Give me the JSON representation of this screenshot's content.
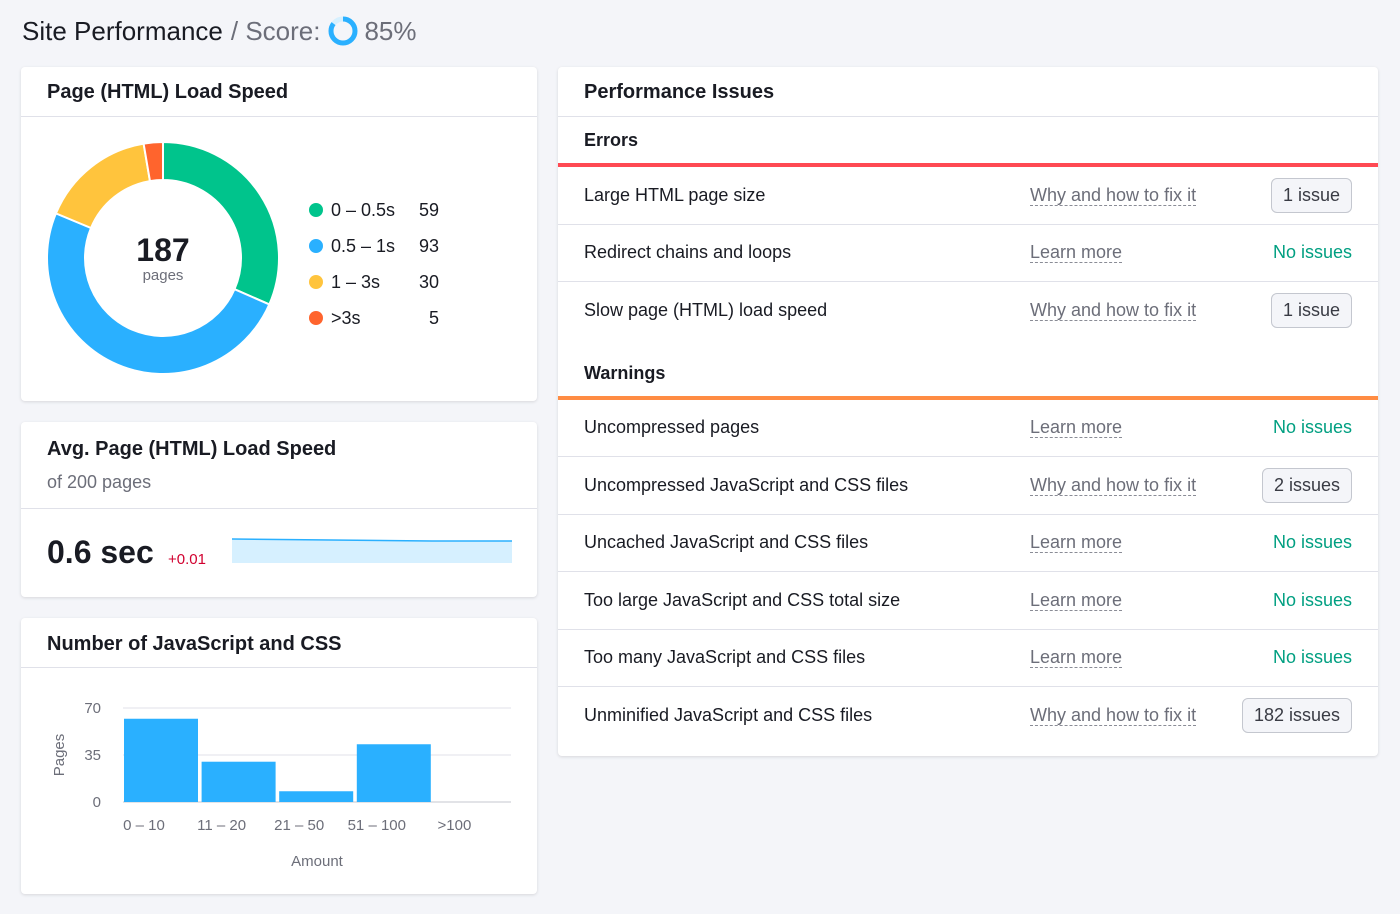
{
  "header": {
    "title": "Site Performance",
    "score_label": "/ Score:",
    "score_value": "85%",
    "score_fraction": 0.85
  },
  "load_speed": {
    "title": "Page (HTML) Load Speed",
    "total": "187",
    "total_label": "pages",
    "segments": [
      {
        "label": "0 – 0.5s",
        "value": 59,
        "color": "#00c48c"
      },
      {
        "label": "0.5 – 1s",
        "value": 93,
        "color": "#2ab0ff"
      },
      {
        "label": "1 – 3s",
        "value": 30,
        "color": "#ffc43d"
      },
      {
        "label": ">3s",
        "value": 5,
        "color": "#ff642d"
      }
    ]
  },
  "avg_speed": {
    "title": "Avg. Page (HTML) Load Speed",
    "subtitle": "of 200 pages",
    "value": "0.6 sec",
    "delta": "+0.01"
  },
  "chart_data": {
    "type": "bar",
    "title": "Number of JavaScript and CSS",
    "categories": [
      "0 – 10",
      "11 – 20",
      "21 – 50",
      "51 – 100",
      ">100"
    ],
    "values": [
      62,
      30,
      8,
      43,
      0
    ],
    "xlabel": "Amount",
    "ylabel": "Pages",
    "yticks": [
      "0",
      "35",
      "70"
    ],
    "ylim": [
      0,
      70
    ],
    "color": "#2ab0ff"
  },
  "issues": {
    "title": "Performance Issues",
    "errors_label": "Errors",
    "warnings_label": "Warnings",
    "errors": [
      {
        "name": "Large HTML page size",
        "link": "Why and how to fix it",
        "status": "1 issue",
        "ok": false
      },
      {
        "name": "Redirect chains and loops",
        "link": "Learn more",
        "status": "No issues",
        "ok": true
      },
      {
        "name": "Slow page (HTML) load speed",
        "link": "Why and how to fix it",
        "status": "1 issue",
        "ok": false
      }
    ],
    "warnings": [
      {
        "name": "Uncompressed pages",
        "link": "Learn more",
        "status": "No issues",
        "ok": true
      },
      {
        "name": "Uncompressed JavaScript and CSS files",
        "link": "Why and how to fix it",
        "status": "2 issues",
        "ok": false
      },
      {
        "name": "Uncached JavaScript and CSS files",
        "link": "Learn more",
        "status": "No issues",
        "ok": true
      },
      {
        "name": "Too large JavaScript and CSS total size",
        "link": "Learn more",
        "status": "No issues",
        "ok": true
      },
      {
        "name": "Too many JavaScript and CSS files",
        "link": "Learn more",
        "status": "No issues",
        "ok": true
      },
      {
        "name": "Unminified JavaScript and CSS files",
        "link": "Why and how to fix it",
        "status": "182 issues",
        "ok": false
      }
    ]
  }
}
